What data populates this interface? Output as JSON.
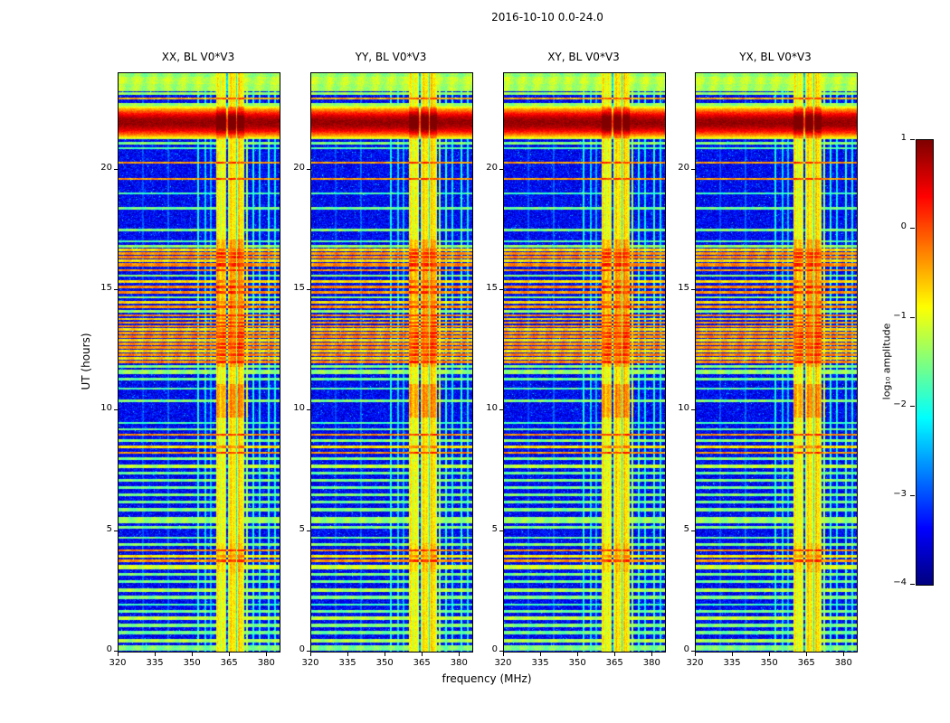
{
  "figure": {
    "title": "2016-10-10 0.0-24.0",
    "xlabel": "frequency (MHz)",
    "ylabel": "UT (hours)"
  },
  "chart_data": {
    "type": "heatmap",
    "title": "2016-10-10 0.0-24.0",
    "xlabel": "frequency (MHz)",
    "ylabel": "UT (hours)",
    "x_range": [
      320,
      385
    ],
    "y_range": [
      0,
      24
    ],
    "x_ticks": [
      320,
      335,
      350,
      365,
      380
    ],
    "y_ticks": [
      0,
      5,
      10,
      15,
      20
    ],
    "panels": [
      {
        "title": "XX, BL V0*V3",
        "seed": 11
      },
      {
        "title": "YY, BL V0*V3",
        "seed": 23
      },
      {
        "title": "XY, BL V0*V3",
        "seed": 37
      },
      {
        "title": "YX, BL V0*V3",
        "seed": 51
      }
    ],
    "colorbar": {
      "label": "log₁₀ amplitude",
      "colormap": "jet",
      "vmin": -4,
      "vmax": 1,
      "ticks": [
        1,
        0,
        -1,
        -2,
        -3,
        -4
      ]
    },
    "noise_floor": -3.4,
    "rfi_bands": [
      {
        "f0": 359.5,
        "f1": 363.6,
        "level": -1.15
      },
      {
        "f0": 364.2,
        "f1": 370.8,
        "level": -1.0
      },
      {
        "f0": 371.4,
        "f1": 372.4,
        "level": -1.5
      }
    ],
    "band_core": [
      359.5,
      370.8
    ],
    "band_bright_columns": [
      360.3,
      361.8,
      365.3,
      366.8,
      368.6,
      369.9
    ],
    "band_gaps": [
      363.9,
      367.6
    ],
    "vertical_lines": [
      {
        "f": 352.2,
        "level": -2.1
      },
      {
        "f": 355.0,
        "level": -2.3
      },
      {
        "f": 357.4,
        "level": -2.5
      },
      {
        "f": 374.3,
        "level": -2.0
      },
      {
        "f": 377.0,
        "level": -2.2
      },
      {
        "f": 380.6,
        "level": -2.0
      },
      {
        "f": 383.2,
        "level": -2.2
      },
      {
        "f": 340.0,
        "level": -2.9
      },
      {
        "f": 330.0,
        "level": -3.0
      }
    ],
    "band_boosts": [
      {
        "t0": 3.3,
        "t1": 4.5,
        "boost": 0.2
      },
      {
        "t0": 9.7,
        "t1": 11.1,
        "boost": 0.45
      },
      {
        "t0": 11.8,
        "t1": 17.1,
        "boost": 0.35
      },
      {
        "t0": 21.3,
        "t1": 22.6,
        "boost": 0.55
      }
    ],
    "events": [
      {
        "t0": 21.5,
        "t1": 22.4,
        "peak": 0.9
      }
    ],
    "stripes": [
      [
        0.15,
        -1.5,
        0.1
      ],
      [
        0.45,
        -1.3,
        0.08
      ],
      [
        0.78,
        -1.6,
        0.07
      ],
      [
        1.08,
        -1.5,
        0.08
      ],
      [
        1.38,
        -1.2,
        0.08
      ],
      [
        1.68,
        -1.6,
        0.06
      ],
      [
        1.95,
        -1.8,
        0.05
      ],
      [
        2.25,
        -1.5,
        0.07
      ],
      [
        2.55,
        -1.3,
        0.08
      ],
      [
        2.9,
        -1.6,
        0.06
      ],
      [
        3.2,
        -1.5,
        0.06
      ],
      [
        3.5,
        -1.1,
        0.1
      ],
      [
        3.76,
        -0.35,
        0.05
      ],
      [
        3.95,
        -0.8,
        0.06
      ],
      [
        4.2,
        -0.3,
        0.05
      ],
      [
        4.45,
        -1.5,
        0.06
      ],
      [
        4.72,
        -1.6,
        0.05
      ],
      [
        5.15,
        -1.5,
        0.06
      ],
      [
        5.45,
        -1.4,
        0.12
      ],
      [
        5.9,
        -1.5,
        0.07
      ],
      [
        6.2,
        -1.6,
        0.06
      ],
      [
        6.5,
        -1.5,
        0.06
      ],
      [
        6.8,
        -1.6,
        0.05
      ],
      [
        7.1,
        -1.5,
        0.06
      ],
      [
        7.4,
        -1.6,
        0.05
      ],
      [
        7.7,
        -1.2,
        0.07
      ],
      [
        8.0,
        -1.5,
        0.05
      ],
      [
        8.25,
        -0.35,
        0.05
      ],
      [
        8.5,
        -0.75,
        0.05
      ],
      [
        8.75,
        -1.5,
        0.05
      ],
      [
        9.0,
        -0.35,
        0.05
      ],
      [
        9.22,
        -1.6,
        0.05
      ],
      [
        9.5,
        -1.8,
        0.04
      ],
      [
        10.4,
        -1.5,
        0.06
      ],
      [
        10.9,
        -1.7,
        0.04
      ],
      [
        11.3,
        -1.6,
        0.05
      ],
      [
        11.6,
        -1.4,
        0.1
      ],
      [
        11.82,
        -1.5,
        0.06
      ],
      [
        12.02,
        -0.3,
        0.05
      ],
      [
        12.18,
        -0.7,
        0.05
      ],
      [
        12.33,
        -0.3,
        0.05
      ],
      [
        12.48,
        -0.65,
        0.05
      ],
      [
        12.62,
        -0.3,
        0.05
      ],
      [
        12.78,
        -0.35,
        0.05
      ],
      [
        12.92,
        -0.7,
        0.05
      ],
      [
        13.06,
        -0.3,
        0.05
      ],
      [
        13.21,
        -0.35,
        0.05
      ],
      [
        13.36,
        -0.7,
        0.05
      ],
      [
        13.5,
        -0.3,
        0.05
      ],
      [
        13.65,
        -0.35,
        0.05
      ],
      [
        13.8,
        -0.7,
        0.05
      ],
      [
        13.95,
        -0.3,
        0.05
      ],
      [
        14.12,
        -1.4,
        0.05
      ],
      [
        14.3,
        -0.35,
        0.05
      ],
      [
        14.5,
        -0.7,
        0.05
      ],
      [
        14.7,
        -1.4,
        0.05
      ],
      [
        14.9,
        -0.35,
        0.05
      ],
      [
        15.12,
        -0.3,
        0.05
      ],
      [
        15.35,
        -0.7,
        0.05
      ],
      [
        15.6,
        -1.4,
        0.05
      ],
      [
        15.82,
        -0.35,
        0.05
      ],
      [
        16.05,
        -0.3,
        0.06
      ],
      [
        16.22,
        -0.7,
        0.05
      ],
      [
        16.38,
        -0.3,
        0.05
      ],
      [
        16.52,
        -0.35,
        0.06
      ],
      [
        16.67,
        -0.7,
        0.05
      ],
      [
        16.82,
        -1.4,
        0.05
      ],
      [
        17.02,
        -1.7,
        0.04
      ],
      [
        17.5,
        -1.5,
        0.05
      ],
      [
        18.4,
        -1.6,
        0.05
      ],
      [
        19.0,
        -1.8,
        0.04
      ],
      [
        19.6,
        -0.4,
        0.04
      ],
      [
        20.3,
        -0.4,
        0.04
      ],
      [
        20.9,
        -1.7,
        0.04
      ],
      [
        21.1,
        -1.5,
        0.05
      ],
      [
        22.5,
        -0.5,
        0.05
      ],
      [
        22.7,
        -1.4,
        0.06
      ],
      [
        22.95,
        -0.5,
        0.04
      ],
      [
        23.15,
        -1.4,
        0.06
      ],
      [
        23.4,
        -1.3,
        0.15
      ],
      [
        23.7,
        -1.2,
        0.15
      ],
      [
        23.95,
        -1.4,
        0.1
      ]
    ]
  }
}
